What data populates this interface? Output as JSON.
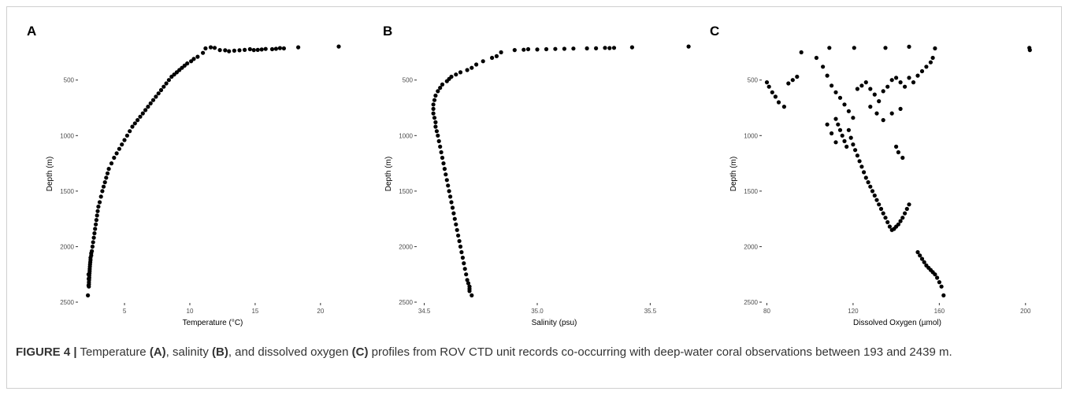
{
  "caption": {
    "figure_label": "FIGURE 4 |",
    "text_1": " Temperature ",
    "ref_a": "(A)",
    "text_2": ", salinity ",
    "ref_b": "(B)",
    "text_3": ", and dissolved oxygen ",
    "ref_c": "(C)",
    "text_4": " profiles from ROV CTD unit records co-occurring with deep-water coral observations between 193 and 2439 m."
  },
  "chart_data": [
    {
      "type": "scatter",
      "panel_label": "A",
      "xlabel": "Temperature (°C)",
      "ylabel": "Depth (m)",
      "xlim": [
        1.5,
        22
      ],
      "ylim": [
        2500,
        190
      ],
      "y_reversed": true,
      "xticks": [
        5,
        10,
        15,
        20
      ],
      "xtick_labels": [
        "5",
        "10",
        "15",
        "20"
      ],
      "yticks": [
        500,
        1000,
        1500,
        2000,
        2500
      ],
      "ytick_labels": [
        "500",
        "1000",
        "1500",
        "2000",
        "2500"
      ],
      "grid": false,
      "x": [
        21.4,
        18.3,
        17.2,
        16.9,
        16.6,
        16.3,
        15.8,
        15.5,
        15.2,
        14.9,
        14.6,
        14.2,
        13.8,
        13.4,
        13.0,
        12.7,
        12.3,
        11.9,
        11.6,
        11.2,
        11.0,
        10.6,
        10.3,
        10.1,
        9.8,
        9.6,
        9.4,
        9.2,
        9.0,
        8.8,
        8.6,
        8.4,
        8.2,
        8.0,
        7.8,
        7.6,
        7.4,
        7.2,
        7.0,
        6.8,
        6.6,
        6.4,
        6.2,
        6.0,
        5.8,
        5.6,
        5.4,
        5.2,
        5.0,
        4.8,
        4.6,
        4.4,
        4.2,
        4.0,
        3.8,
        3.7,
        3.6,
        3.5,
        3.4,
        3.3,
        3.2,
        3.1,
        3.0,
        2.95,
        2.9,
        2.85,
        2.8,
        2.75,
        2.7,
        2.65,
        2.6,
        2.55,
        2.5,
        2.45,
        2.45,
        2.4,
        2.4,
        2.38,
        2.36,
        2.35,
        2.34,
        2.33,
        2.32,
        2.3,
        2.3,
        2.29,
        2.28,
        2.28,
        2.27,
        2.26,
        2.25,
        2.25,
        2.2
      ],
      "y": [
        198,
        205,
        215,
        212,
        218,
        222,
        220,
        225,
        228,
        230,
        222,
        228,
        232,
        235,
        240,
        232,
        230,
        210,
        205,
        215,
        255,
        290,
        310,
        330,
        350,
        370,
        390,
        410,
        430,
        450,
        470,
        500,
        530,
        560,
        590,
        620,
        650,
        680,
        710,
        740,
        770,
        800,
        830,
        860,
        890,
        920,
        960,
        1000,
        1040,
        1080,
        1120,
        1160,
        1200,
        1250,
        1300,
        1340,
        1380,
        1420,
        1460,
        1500,
        1550,
        1600,
        1640,
        1680,
        1720,
        1760,
        1800,
        1840,
        1880,
        1920,
        1960,
        2000,
        2040,
        2060,
        2080,
        2100,
        2120,
        2140,
        2160,
        2180,
        2200,
        2220,
        2240,
        2260,
        2280,
        2300,
        2320,
        2340,
        2360,
        2290,
        2250,
        2350,
        2439
      ]
    },
    {
      "type": "scatter",
      "panel_label": "B",
      "xlabel": "Salinity (psu)",
      "ylabel": "Depth (m)",
      "xlim": [
        34.47,
        35.68
      ],
      "ylim": [
        2500,
        190
      ],
      "y_reversed": true,
      "xticks": [
        34.5,
        35.0,
        35.5
      ],
      "xtick_labels": [
        "34.5",
        "35.0",
        "35.5"
      ],
      "yticks": [
        500,
        1000,
        1500,
        2000,
        2500
      ],
      "ytick_labels": [
        "500",
        "1000",
        "1500",
        "2000",
        "2500"
      ],
      "grid": false,
      "x": [
        35.67,
        35.42,
        35.34,
        35.32,
        35.3,
        35.26,
        35.22,
        35.16,
        35.12,
        35.08,
        35.04,
        35.0,
        34.96,
        34.94,
        34.9,
        34.84,
        34.82,
        34.8,
        34.76,
        34.73,
        34.71,
        34.69,
        34.66,
        34.64,
        34.62,
        34.61,
        34.6,
        34.58,
        34.57,
        34.56,
        34.55,
        34.545,
        34.54,
        34.54,
        34.54,
        34.545,
        34.55,
        34.55,
        34.555,
        34.56,
        34.565,
        34.57,
        34.575,
        34.58,
        34.585,
        34.59,
        34.595,
        34.6,
        34.605,
        34.61,
        34.615,
        34.62,
        34.625,
        34.63,
        34.635,
        34.64,
        34.645,
        34.65,
        34.655,
        34.66,
        34.665,
        34.67,
        34.675,
        34.68,
        34.685,
        34.69,
        34.695,
        34.7,
        34.7,
        34.7,
        34.71
      ],
      "y": [
        198,
        205,
        210,
        212,
        210,
        214,
        215,
        216,
        218,
        220,
        222,
        225,
        222,
        227,
        230,
        250,
        285,
        300,
        330,
        360,
        390,
        410,
        430,
        450,
        470,
        490,
        510,
        540,
        570,
        600,
        640,
        680,
        720,
        760,
        800,
        840,
        880,
        920,
        960,
        1000,
        1050,
        1100,
        1150,
        1200,
        1250,
        1300,
        1350,
        1400,
        1450,
        1500,
        1550,
        1600,
        1650,
        1700,
        1750,
        1800,
        1850,
        1900,
        1950,
        2000,
        2050,
        2100,
        2150,
        2200,
        2250,
        2300,
        2330,
        2360,
        2380,
        2400,
        2439
      ]
    },
    {
      "type": "scatter",
      "panel_label": "C",
      "xlabel": "Dissolved Oxygen (µmol)",
      "ylabel": "Depth (m)",
      "xlim": [
        78,
        203
      ],
      "ylim": [
        2500,
        190
      ],
      "y_reversed": true,
      "xticks": [
        80,
        120,
        160,
        200
      ],
      "xtick_labels": [
        "80",
        "120",
        "160",
        "200"
      ],
      "yticks": [
        500,
        1000,
        1500,
        2000,
        2500
      ],
      "ytick_labels": [
        "500",
        "1000",
        "1500",
        "2000",
        "2500"
      ],
      "grid": false,
      "x": [
        201.8,
        202.0,
        158.0,
        146.0,
        135.0,
        120.5,
        109.0,
        96.0,
        80.0,
        81.0,
        82.5,
        84.0,
        85.5,
        88.0,
        90.0,
        92.0,
        94.0,
        103.0,
        106.0,
        108.0,
        110.0,
        112.0,
        114.0,
        116.0,
        118.0,
        120.0,
        122.0,
        124.0,
        126.0,
        128.0,
        130.0,
        132.0,
        134.0,
        136.0,
        138.0,
        140.0,
        142.0,
        144.0,
        146.0,
        148.0,
        150.0,
        152.0,
        154.0,
        156.0,
        157.0,
        112.0,
        113.0,
        114.0,
        115.0,
        116.0,
        117.0,
        118.0,
        119.0,
        120.0,
        121.0,
        122.0,
        123.0,
        124.0,
        125.0,
        126.0,
        127.0,
        128.0,
        129.0,
        130.0,
        131.0,
        132.0,
        133.0,
        134.0,
        135.0,
        136.0,
        137.0,
        138.0,
        139.0,
        140.0,
        141.0,
        142.0,
        143.0,
        144.0,
        145.0,
        146.0,
        150.0,
        151.0,
        152.0,
        153.0,
        154.0,
        155.0,
        156.0,
        157.0,
        158.0,
        159.0,
        160.0,
        161.0,
        162.0,
        128.0,
        131.0,
        134.0,
        138.0,
        142.0,
        108.0,
        110.0,
        112.0,
        140.0,
        141.0,
        143.0
      ],
      "y": [
        210,
        230,
        215,
        200,
        210,
        210,
        210,
        250,
        520,
        560,
        610,
        650,
        700,
        740,
        530,
        500,
        470,
        300,
        380,
        460,
        550,
        610,
        660,
        720,
        780,
        840,
        580,
        550,
        520,
        580,
        630,
        690,
        600,
        560,
        500,
        480,
        520,
        560,
        480,
        520,
        460,
        420,
        380,
        340,
        300,
        850,
        900,
        950,
        1000,
        1050,
        1100,
        950,
        1020,
        1080,
        1130,
        1180,
        1230,
        1280,
        1330,
        1380,
        1420,
        1460,
        1500,
        1540,
        1580,
        1620,
        1660,
        1700,
        1740,
        1780,
        1820,
        1850,
        1840,
        1820,
        1800,
        1770,
        1740,
        1700,
        1660,
        1620,
        2050,
        2080,
        2110,
        2140,
        2170,
        2190,
        2210,
        2230,
        2250,
        2280,
        2320,
        2360,
        2439,
        740,
        800,
        860,
        800,
        760,
        900,
        980,
        1060,
        1100,
        1150,
        1200
      ]
    }
  ]
}
